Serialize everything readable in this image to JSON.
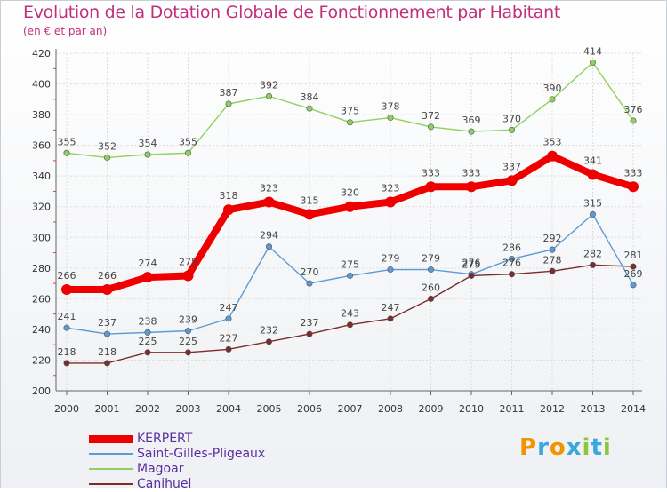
{
  "title": "Evolution de la Dotation Globale de Fonctionnement par Habitant",
  "subtitle": "(en € et par an)",
  "logo": {
    "text": "Proxiti",
    "letters": [
      "P",
      "r",
      "o",
      "x",
      "i",
      "t",
      "i"
    ],
    "colors": [
      "#f29400",
      "#3aa7e0",
      "#f29400",
      "#3aa7e0",
      "#8cc63f",
      "#3aa7e0",
      "#8cc63f"
    ]
  },
  "chart_data": {
    "type": "line",
    "title": "Evolution de la Dotation Globale de Fonctionnement par Habitant",
    "ylabel": "(en € et par an)",
    "xlabel": "",
    "x": [
      2000,
      2001,
      2002,
      2003,
      2004,
      2005,
      2006,
      2007,
      2008,
      2009,
      2010,
      2011,
      2012,
      2013,
      2014
    ],
    "ylim": [
      200,
      420
    ],
    "yticks": [
      200,
      220,
      240,
      260,
      280,
      300,
      320,
      340,
      360,
      380,
      400,
      420
    ],
    "grid": true,
    "legend_position": "bottom-left",
    "series": [
      {
        "name": "KERPERT",
        "color": "#ee0000",
        "width": 8,
        "marker": 6,
        "values": [
          266,
          266,
          274,
          275,
          318,
          323,
          315,
          320,
          323,
          333,
          333,
          337,
          353,
          341,
          333
        ]
      },
      {
        "name": "Saint-Gilles-Pligeaux",
        "color": "#5b9bd5",
        "width": 1.4,
        "marker": 3.2,
        "values": [
          241,
          237,
          238,
          239,
          247,
          294,
          270,
          275,
          279,
          279,
          276,
          286,
          292,
          315,
          269
        ]
      },
      {
        "name": "Magoar",
        "color": "#8ed15f",
        "width": 1.4,
        "marker": 3.2,
        "values": [
          355,
          352,
          354,
          355,
          387,
          392,
          384,
          375,
          378,
          372,
          369,
          370,
          390,
          414,
          376
        ]
      },
      {
        "name": "Canihuel",
        "color": "#7b2c2c",
        "width": 1.4,
        "marker": 3.2,
        "values": [
          218,
          218,
          225,
          225,
          227,
          232,
          237,
          243,
          247,
          260,
          275,
          276,
          278,
          282,
          281
        ]
      }
    ]
  }
}
